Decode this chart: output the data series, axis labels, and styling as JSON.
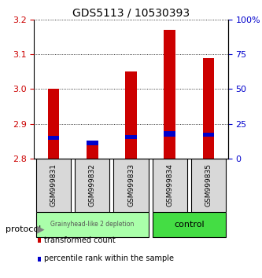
{
  "title": "GDS5113 / 10530393",
  "samples": [
    "GSM999831",
    "GSM999832",
    "GSM999833",
    "GSM999834",
    "GSM999835"
  ],
  "bar_bottom": 2.8,
  "red_tops": [
    3.0,
    2.845,
    3.05,
    3.17,
    3.09
  ],
  "blue_bottoms": [
    2.853,
    2.838,
    2.856,
    2.862,
    2.862
  ],
  "blue_tops": [
    2.865,
    2.852,
    2.868,
    2.878,
    2.875
  ],
  "ylim": [
    2.8,
    3.2
  ],
  "yticks_left": [
    2.8,
    2.9,
    3.0,
    3.1,
    3.2
  ],
  "yticks_right": [
    0,
    25,
    50,
    75,
    100
  ],
  "ytick_labels_right": [
    "0",
    "25",
    "50",
    "75",
    "100%"
  ],
  "ylabel_left_color": "#cc0000",
  "ylabel_right_color": "#0000cc",
  "bar_color_red": "#cc0000",
  "bar_color_blue": "#0000cc",
  "group1_label": "Grainyhead-like 2 depletion",
  "group2_label": "control",
  "group1_color": "#aaffaa",
  "group2_color": "#44dd44",
  "group1_samples": [
    0,
    1,
    2
  ],
  "group2_samples": [
    3,
    4
  ],
  "protocol_label": "protocol",
  "legend1": "transformed count",
  "legend2": "percentile rank within the sample",
  "bg_color": "#d8d8d8"
}
